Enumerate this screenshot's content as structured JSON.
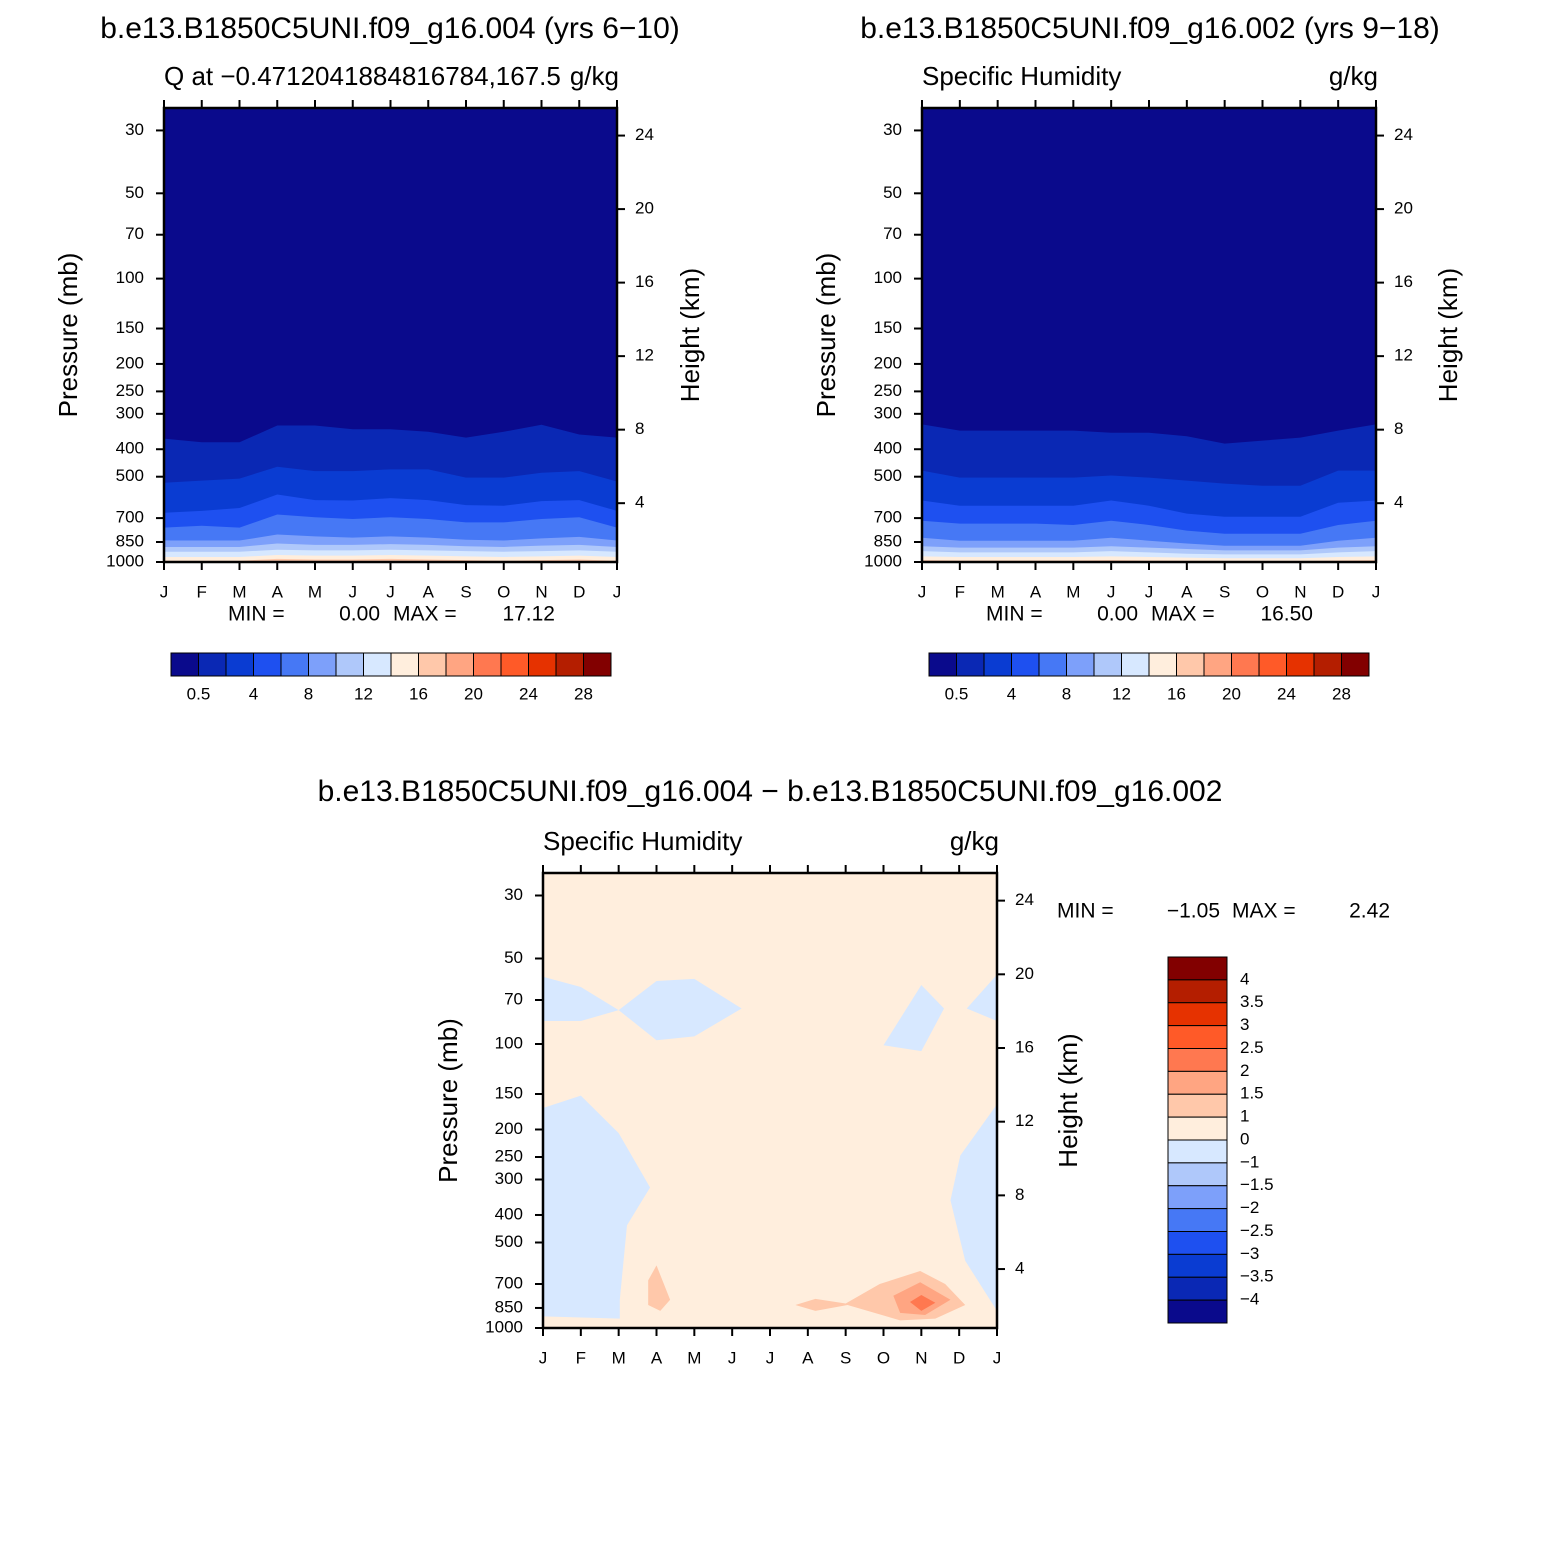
{
  "chart_data": [
    {
      "type": "contour",
      "title": "b.e13.B1850C5UNI.f09_g16.004 (yrs 6−10)",
      "left_string": "Q at −0.4712041884816784,167.5",
      "right_string": "g/kg",
      "categories": [
        "J",
        "F",
        "M",
        "A",
        "M",
        "J",
        "J",
        "A",
        "S",
        "O",
        "N",
        "D",
        "J"
      ],
      "log_y": true,
      "ylim": [
        1000,
        25
      ],
      "yticks": [
        30,
        50,
        70,
        100,
        150,
        200,
        250,
        300,
        400,
        500,
        700,
        850,
        1000
      ],
      "y_label": "Pressure (mb)",
      "y2lim": [
        0.8,
        25.5
      ],
      "y2ticks": [
        4,
        8,
        12,
        16,
        20,
        24
      ],
      "y2_label": "Height (km)",
      "stats": {
        "min_label": "MIN =",
        "min": {
          "value": 0,
          "label": "0.00"
        },
        "max_label": "MAX =",
        "max": {
          "value": 17.12,
          "label": "17.12"
        }
      },
      "background": "#0a0a8c",
      "contours": [
        {
          "color": "#0a28b4",
          "values": [
            367,
            378,
            378,
            330,
            330,
            340,
            340,
            347,
            364,
            347,
            328,
            355,
            364
          ]
        },
        {
          "color": "#0a3cd2",
          "values": [
            525,
            516,
            508,
            461,
            478,
            478,
            471,
            471,
            504,
            504,
            484,
            478,
            520
          ]
        },
        {
          "color": "#1e50f0",
          "values": [
            670,
            660,
            645,
            578,
            605,
            607,
            595,
            605,
            630,
            633,
            610,
            605,
            660
          ]
        },
        {
          "color": "#4678f5",
          "values": [
            756,
            745,
            756,
            680,
            695,
            705,
            695,
            705,
            725,
            725,
            705,
            695,
            756
          ]
        },
        {
          "color": "#7da0fa",
          "values": [
            840,
            840,
            840,
            800,
            812,
            820,
            812,
            820,
            835,
            840,
            825,
            815,
            840
          ]
        },
        {
          "color": "#afc8fa",
          "values": [
            885,
            885,
            885,
            860,
            870,
            870,
            865,
            870,
            880,
            885,
            875,
            870,
            885
          ]
        },
        {
          "color": "#d7e8ff",
          "values": [
            920,
            920,
            920,
            905,
            910,
            910,
            905,
            910,
            915,
            920,
            915,
            910,
            920
          ]
        },
        {
          "color": "#ffeedd",
          "values": [
            960,
            960,
            960,
            945,
            950,
            950,
            945,
            950,
            955,
            960,
            955,
            950,
            960
          ]
        },
        {
          "color": "#ffc8aa",
          "values": [
            990,
            990,
            990,
            975,
            980,
            980,
            975,
            980,
            985,
            990,
            985,
            980,
            990
          ]
        }
      ],
      "colorbar": {
        "orientation": "horizontal",
        "colors": [
          "#0a0a8c",
          "#0a28b4",
          "#0a3cd2",
          "#1e50f0",
          "#4678f5",
          "#7da0fa",
          "#afc8fa",
          "#d7e8ff",
          "#ffeedd",
          "#ffc8aa",
          "#ffa582",
          "#ff7850",
          "#ff5a28",
          "#e63200",
          "#b41e00",
          "#820000"
        ],
        "labels": [
          0.5,
          4,
          8,
          12,
          16,
          20,
          24,
          28
        ]
      }
    },
    {
      "type": "contour",
      "title": "b.e13.B1850C5UNI.f09_g16.002 (yrs 9−18)",
      "left_string": "Specific Humidity",
      "right_string": "g/kg",
      "categories": [
        "J",
        "F",
        "M",
        "A",
        "M",
        "J",
        "J",
        "A",
        "S",
        "O",
        "N",
        "D",
        "J"
      ],
      "log_y": true,
      "ylim": [
        1000,
        25
      ],
      "yticks": [
        30,
        50,
        70,
        100,
        150,
        200,
        250,
        300,
        400,
        500,
        700,
        850,
        1000
      ],
      "y_label": "Pressure (mb)",
      "y2lim": [
        0.8,
        25.5
      ],
      "y2ticks": [
        4,
        8,
        12,
        16,
        20,
        24
      ],
      "y2_label": "Height (km)",
      "stats": {
        "min_label": "MIN =",
        "min": {
          "value": 0,
          "label": "0.00"
        },
        "max_label": "MAX =",
        "max": {
          "value": 16.5,
          "label": "16.50"
        }
      },
      "background": "#0a0a8c",
      "contours": [
        {
          "color": "#0a28b4",
          "values": [
            327,
            344,
            344,
            344,
            344,
            350,
            350,
            360,
            382,
            373,
            364,
            344,
            327
          ]
        },
        {
          "color": "#0a3cd2",
          "values": [
            476,
            504,
            504,
            504,
            504,
            495,
            504,
            516,
            529,
            538,
            538,
            476,
            476
          ]
        },
        {
          "color": "#1e50f0",
          "values": [
            607,
            633,
            633,
            633,
            633,
            607,
            633,
            675,
            692,
            692,
            692,
            618,
            607
          ]
        },
        {
          "color": "#4678f5",
          "values": [
            715,
            732,
            732,
            732,
            740,
            715,
            740,
            775,
            795,
            795,
            795,
            740,
            715
          ]
        },
        {
          "color": "#7da0fa",
          "values": [
            821,
            841,
            841,
            841,
            841,
            821,
            841,
            860,
            876,
            876,
            876,
            841,
            821
          ]
        },
        {
          "color": "#afc8fa",
          "values": [
            880,
            890,
            890,
            890,
            890,
            880,
            890,
            900,
            910,
            910,
            910,
            890,
            880
          ]
        },
        {
          "color": "#d7e8ff",
          "values": [
            915,
            925,
            925,
            925,
            925,
            915,
            925,
            935,
            940,
            940,
            940,
            925,
            915
          ]
        },
        {
          "color": "#ffeedd",
          "values": [
            955,
            960,
            960,
            960,
            960,
            955,
            960,
            965,
            970,
            970,
            970,
            960,
            955
          ]
        },
        {
          "color": "#ffc8aa",
          "values": [
            985,
            988,
            988,
            988,
            988,
            985,
            988,
            990,
            992,
            992,
            992,
            988,
            985
          ]
        }
      ],
      "colorbar": {
        "orientation": "horizontal",
        "colors": [
          "#0a0a8c",
          "#0a28b4",
          "#0a3cd2",
          "#1e50f0",
          "#4678f5",
          "#7da0fa",
          "#afc8fa",
          "#d7e8ff",
          "#ffeedd",
          "#ffc8aa",
          "#ffa582",
          "#ff7850",
          "#ff5a28",
          "#e63200",
          "#b41e00",
          "#820000"
        ],
        "labels": [
          0.5,
          4,
          8,
          12,
          16,
          20,
          24,
          28
        ]
      }
    },
    {
      "type": "contour-diff",
      "title": "b.e13.B1850C5UNI.f09_g16.004 − b.e13.B1850C5UNI.f09_g16.002",
      "left_string": "Specific Humidity",
      "right_string": "g/kg",
      "categories": [
        "J",
        "F",
        "M",
        "A",
        "M",
        "J",
        "J",
        "A",
        "S",
        "O",
        "N",
        "D",
        "J"
      ],
      "log_y": true,
      "ylim": [
        1000,
        25
      ],
      "yticks": [
        30,
        50,
        70,
        100,
        150,
        200,
        250,
        300,
        400,
        500,
        700,
        850,
        1000
      ],
      "y_label": "Pressure (mb)",
      "y2lim": [
        0.8,
        25.5
      ],
      "y2ticks": [
        4,
        8,
        12,
        16,
        20,
        24
      ],
      "y2_label": "Height (km)",
      "stats": {
        "min_label": "MIN =",
        "min": {
          "value": -1.05,
          "label": "−1.05"
        },
        "max_label": "MAX =",
        "max": {
          "value": 2.42,
          "label": "2.42"
        }
      },
      "background": "#ffeedd",
      "regions": [
        {
          "color": "#d7e8ff",
          "x": [
            0,
            1,
            2,
            3,
            4,
            5.25,
            4,
            3,
            2,
            1,
            0
          ],
          "values": [
            58,
            63,
            76,
            60,
            59,
            75,
            94,
            97,
            76,
            83,
            83
          ]
        },
        {
          "color": "#d7e8ff",
          "x": [
            9,
            10,
            10.6,
            10
          ],
          "values": [
            101,
            62,
            75,
            106
          ]
        },
        {
          "color": "#d7e8ff",
          "x": [
            12,
            11.2,
            12
          ],
          "values": [
            57,
            75,
            83
          ]
        },
        {
          "color": "#d7e8ff",
          "x": [
            0,
            1,
            2,
            2.83,
            2.22,
            2.03,
            2.03,
            0
          ],
          "values": [
            168,
            152,
            206,
            320,
            435,
            795,
            927,
            910
          ]
        },
        {
          "color": "#d7e8ff",
          "x": [
            12,
            11.03,
            10.77,
            11.16,
            12
          ],
          "values": [
            163,
            247,
            355,
            580,
            870
          ]
        },
        {
          "color": "#ffc8aa",
          "x": [
            3,
            3.36,
            3.1,
            2.78,
            2.78
          ],
          "values": [
            602,
            795,
            870,
            830,
            680
          ]
        },
        {
          "color": "#ffc8aa",
          "x": [
            6.67,
            7.2,
            8,
            8.9,
            9.97,
            10.63,
            11.16,
            10.37,
            9.44,
            8.05,
            7.2
          ],
          "values": [
            830,
            790,
            820,
            700,
            630,
            700,
            830,
            927,
            940,
            830,
            870
          ]
        },
        {
          "color": "#ffa582",
          "x": [
            9.26,
            9.97,
            10.77,
            10.1,
            9.44
          ],
          "values": [
            770,
            690,
            795,
            900,
            885
          ]
        },
        {
          "color": "#ff7850",
          "x": [
            9.7,
            10,
            10.37,
            10
          ],
          "values": [
            810,
            765,
            815,
            870
          ]
        }
      ],
      "colorbar": {
        "orientation": "vertical",
        "colors": [
          "#820000",
          "#b41e00",
          "#e63200",
          "#ff5a28",
          "#ff7850",
          "#ffa582",
          "#ffc8aa",
          "#ffeedd",
          "#d7e8ff",
          "#afc8fa",
          "#7da0fa",
          "#4678f5",
          "#1e50f0",
          "#0a3cd2",
          "#0a28b4",
          "#0a0a8c"
        ],
        "labels": [
          4,
          3.5,
          3,
          2.5,
          2,
          1.5,
          1,
          0,
          {
            "value": -1,
            "label": "−1"
          },
          {
            "value": -1.5,
            "label": "−1.5"
          },
          {
            "value": -2,
            "label": "−2"
          },
          {
            "value": -2.5,
            "label": "−2.5"
          },
          {
            "value": -3,
            "label": "−3"
          },
          {
            "value": -3.5,
            "label": "−3.5"
          },
          {
            "value": -4,
            "label": "−4"
          }
        ]
      }
    }
  ]
}
